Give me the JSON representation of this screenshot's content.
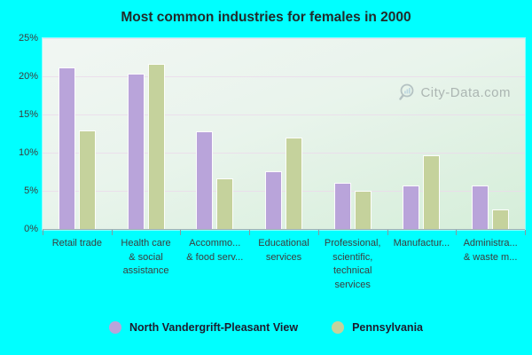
{
  "title": "Most common industries for females in 2000",
  "watermark": "City-Data.com",
  "colors": {
    "background": "#00ffff",
    "series1": "#b9a4da",
    "series2": "#c5d29c",
    "gridline": "#ebdbeb",
    "axis_text": "#3c3c3c",
    "title_text": "#222a2a",
    "watermark_text": "#7d8486"
  },
  "y_axis": {
    "tick_labels": [
      "0%",
      "5%",
      "10%",
      "15%",
      "20%",
      "25%"
    ],
    "tick_values": [
      0,
      5,
      10,
      15,
      20,
      25
    ]
  },
  "legend": {
    "items": [
      {
        "label": "North Vandergrift-Pleasant View",
        "color": "#b9a4da"
      },
      {
        "label": "Pennsylvania",
        "color": "#c5d29c"
      }
    ]
  },
  "chart_data": {
    "type": "bar",
    "title": "Most common industries for females in 2000",
    "categories": [
      "Retail trade",
      "Health care & social assistance",
      "Accommo... & food serv...",
      "Educational services",
      "Professional, scientific, technical services",
      "Manufactur...",
      "Administra... & waste m..."
    ],
    "categories_display": [
      [
        "Retail trade"
      ],
      [
        "Health care",
        "& social",
        "assistance"
      ],
      [
        "Accommo...",
        "& food serv..."
      ],
      [
        "Educational",
        "services"
      ],
      [
        "Professional,",
        "scientific,",
        "technical",
        "services"
      ],
      [
        "Manufactur..."
      ],
      [
        "Administra...",
        "& waste m..."
      ]
    ],
    "series": [
      {
        "name": "North Vandergrift-Pleasant View",
        "color": "#b9a4da",
        "values": [
          21.2,
          20.3,
          12.8,
          7.6,
          6.1,
          5.7,
          5.7
        ]
      },
      {
        "name": "Pennsylvania",
        "color": "#c5d29c",
        "values": [
          12.9,
          21.6,
          6.6,
          12.0,
          5.0,
          9.7,
          2.6
        ]
      }
    ],
    "ylim": [
      0,
      25
    ],
    "xlabel": "",
    "ylabel": "",
    "grid": true,
    "legend_position": "bottom"
  }
}
